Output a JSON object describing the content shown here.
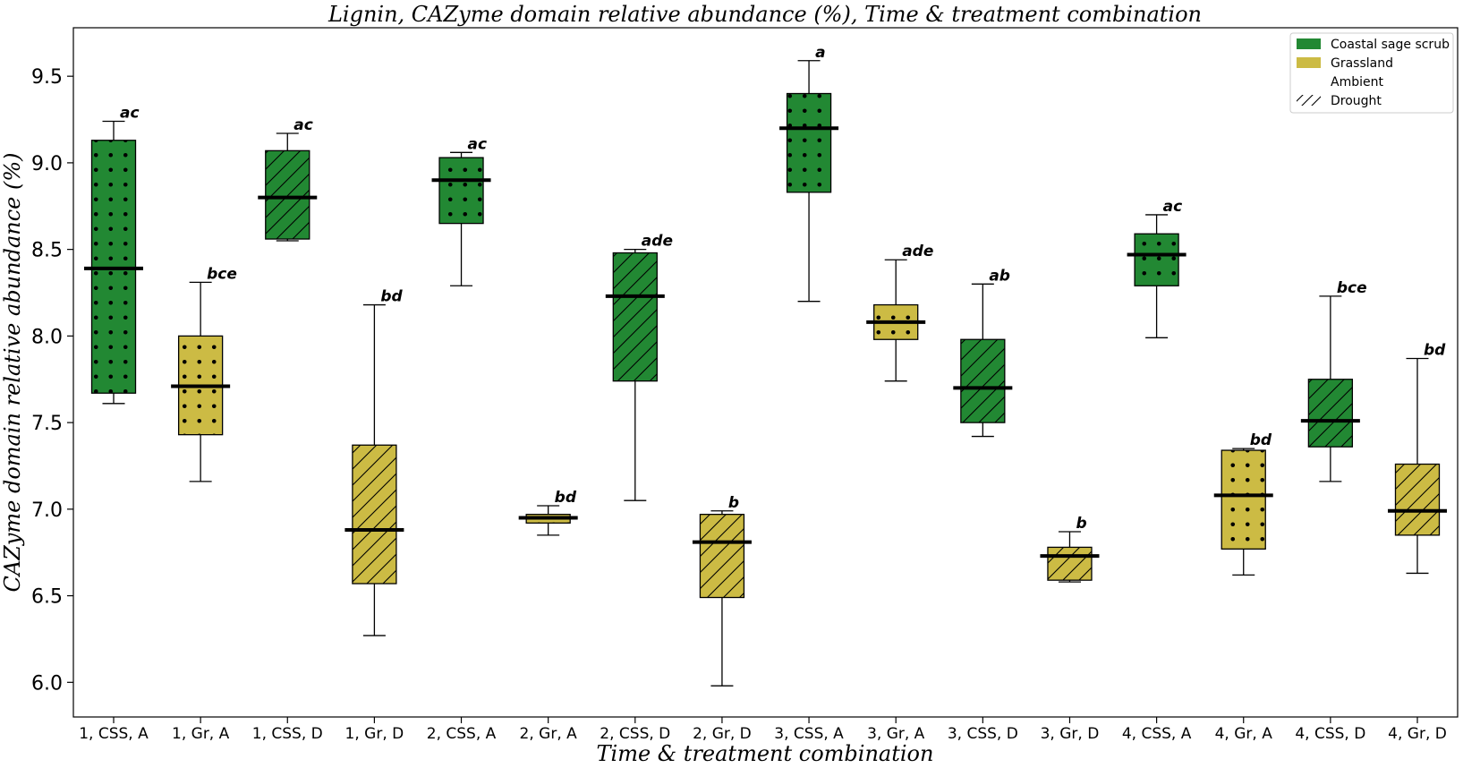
{
  "chart_data": {
    "type": "boxplot",
    "title": "Lignin, CAZyme domain relative abundance (%), Time & treatment combination",
    "xlabel": "Time & treatment combination",
    "ylabel": "CAZyme domain relative abundance (%)",
    "ylim": [
      5.8,
      9.78
    ],
    "yticks": [
      "6.0",
      "6.5",
      "7.0",
      "7.5",
      "8.0",
      "8.5",
      "9.0",
      "9.5"
    ],
    "grid": false,
    "legend_placement": "top-right",
    "colors": {
      "css": "#228833",
      "gr": "#CCBB44"
    },
    "legend": [
      {
        "label": "Coastal sage scrub",
        "kind": "patch",
        "color": "#228833"
      },
      {
        "label": "Grassland",
        "kind": "patch",
        "color": "#CCBB44"
      },
      {
        "label": "Ambient",
        "kind": "hatch-none"
      },
      {
        "label": "Drought",
        "kind": "hatch-diag"
      }
    ],
    "boxes": [
      {
        "category": "1, CSS, A",
        "site": "css",
        "treatment": "ambient",
        "whislo": 7.61,
        "q1": 7.67,
        "med": 8.39,
        "q3": 9.13,
        "whishi": 9.24,
        "letters": "ac"
      },
      {
        "category": "1, Gr, A",
        "site": "gr",
        "treatment": "ambient",
        "whislo": 7.16,
        "q1": 7.43,
        "med": 7.71,
        "q3": 8.0,
        "whishi": 8.31,
        "letters": "bce"
      },
      {
        "category": "1, CSS, D",
        "site": "css",
        "treatment": "drought",
        "whislo": 8.55,
        "q1": 8.56,
        "med": 8.8,
        "q3": 9.07,
        "whishi": 9.17,
        "letters": "ac"
      },
      {
        "category": "1, Gr, D",
        "site": "gr",
        "treatment": "drought",
        "whislo": 6.27,
        "q1": 6.57,
        "med": 6.88,
        "q3": 7.37,
        "whishi": 8.18,
        "letters": "bd"
      },
      {
        "category": "2, CSS, A",
        "site": "css",
        "treatment": "ambient",
        "whislo": 8.29,
        "q1": 8.65,
        "med": 8.9,
        "q3": 9.03,
        "whishi": 9.06,
        "letters": "ac"
      },
      {
        "category": "2, Gr, A",
        "site": "gr",
        "treatment": "ambient",
        "whislo": 6.85,
        "q1": 6.92,
        "med": 6.95,
        "q3": 6.97,
        "whishi": 7.02,
        "letters": "bd"
      },
      {
        "category": "2, CSS, D",
        "site": "css",
        "treatment": "drought",
        "whislo": 7.05,
        "q1": 7.74,
        "med": 8.23,
        "q3": 8.48,
        "whishi": 8.5,
        "letters": "ade"
      },
      {
        "category": "2, Gr, D",
        "site": "gr",
        "treatment": "drought",
        "whislo": 5.98,
        "q1": 6.49,
        "med": 6.81,
        "q3": 6.97,
        "whishi": 6.99,
        "letters": "b"
      },
      {
        "category": "3, CSS, A",
        "site": "css",
        "treatment": "ambient",
        "whislo": 8.2,
        "q1": 8.83,
        "med": 9.2,
        "q3": 9.4,
        "whishi": 9.59,
        "letters": "a"
      },
      {
        "category": "3, Gr, A",
        "site": "gr",
        "treatment": "ambient",
        "whislo": 7.74,
        "q1": 7.98,
        "med": 8.08,
        "q3": 8.18,
        "whishi": 8.44,
        "letters": "ade"
      },
      {
        "category": "3, CSS, D",
        "site": "css",
        "treatment": "drought",
        "whislo": 7.42,
        "q1": 7.5,
        "med": 7.7,
        "q3": 7.98,
        "whishi": 8.3,
        "letters": "ab"
      },
      {
        "category": "3, Gr, D",
        "site": "gr",
        "treatment": "drought",
        "whislo": 6.58,
        "q1": 6.59,
        "med": 6.73,
        "q3": 6.78,
        "whishi": 6.87,
        "letters": "b"
      },
      {
        "category": "4, CSS, A",
        "site": "css",
        "treatment": "ambient",
        "whislo": 7.99,
        "q1": 8.29,
        "med": 8.47,
        "q3": 8.59,
        "whishi": 8.7,
        "letters": "ac"
      },
      {
        "category": "4, Gr, A",
        "site": "gr",
        "treatment": "ambient",
        "whislo": 6.62,
        "q1": 6.77,
        "med": 7.08,
        "q3": 7.34,
        "whishi": 7.35,
        "letters": "bd"
      },
      {
        "category": "4, CSS, D",
        "site": "css",
        "treatment": "drought",
        "whislo": 7.16,
        "q1": 7.36,
        "med": 7.51,
        "q3": 7.75,
        "whishi": 8.23,
        "letters": "bce"
      },
      {
        "category": "4, Gr, D",
        "site": "gr",
        "treatment": "drought",
        "whislo": 6.63,
        "q1": 6.85,
        "med": 6.99,
        "q3": 7.26,
        "whishi": 7.87,
        "letters": "bd"
      }
    ]
  }
}
